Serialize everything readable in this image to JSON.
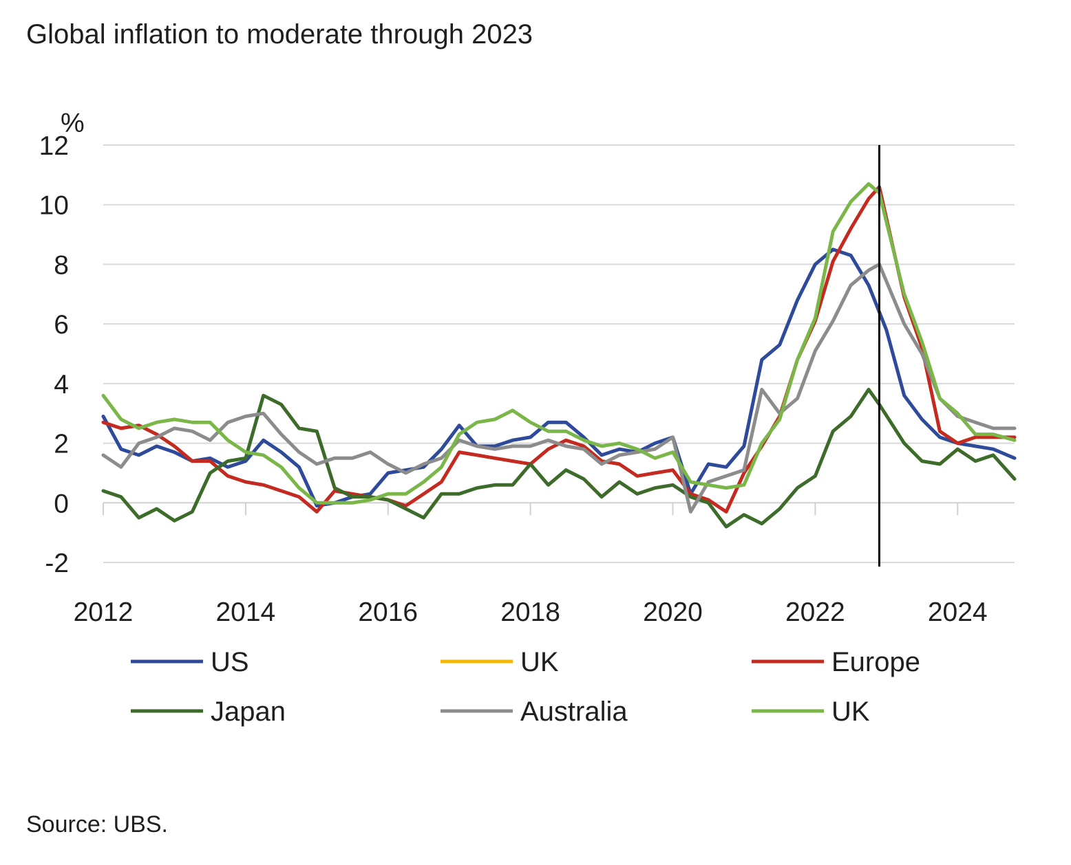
{
  "chart_data": {
    "type": "line",
    "title": "Global inflation to moderate through 2023",
    "source": "Source: UBS.",
    "ylabel": "%",
    "xlabel": "",
    "ylim": [
      -2,
      12
    ],
    "xlim": [
      2012,
      2024.8
    ],
    "yticks": [
      -2,
      0,
      2,
      4,
      6,
      8,
      10,
      12
    ],
    "xticks": [
      2012,
      2014,
      2016,
      2018,
      2020,
      2022,
      2024
    ],
    "grid": true,
    "vline_x": 2022.9,
    "legend": [
      {
        "name": "US",
        "color": "#2e4a9a"
      },
      {
        "name": "UK",
        "color": "#f5b800"
      },
      {
        "name": "Europe",
        "color": "#c42a1f"
      },
      {
        "name": "Japan",
        "color": "#3d6b2a"
      },
      {
        "name": "Australia",
        "color": "#8c8c8c"
      },
      {
        "name": "UK",
        "color": "#7ab648"
      }
    ],
    "series": [
      {
        "name": "US",
        "color": "#2e4a9a",
        "x": [
          2012,
          2012.25,
          2012.5,
          2012.75,
          2013,
          2013.25,
          2013.5,
          2013.75,
          2014,
          2014.25,
          2014.5,
          2014.75,
          2015,
          2015.25,
          2015.5,
          2015.75,
          2016,
          2016.25,
          2016.5,
          2016.75,
          2017,
          2017.25,
          2017.5,
          2017.75,
          2018,
          2018.25,
          2018.5,
          2018.75,
          2019,
          2019.25,
          2019.5,
          2019.75,
          2020,
          2020.25,
          2020.5,
          2020.75,
          2021,
          2021.25,
          2021.5,
          2021.75,
          2022,
          2022.25,
          2022.5,
          2022.75,
          2023,
          2023.25,
          2023.5,
          2023.75,
          2024,
          2024.25,
          2024.5,
          2024.8
        ],
        "values": [
          2.9,
          1.8,
          1.6,
          1.9,
          1.7,
          1.4,
          1.5,
          1.2,
          1.4,
          2.1,
          1.7,
          1.2,
          -0.1,
          0,
          0.2,
          0.3,
          1,
          1.1,
          1.2,
          1.8,
          2.6,
          1.9,
          1.9,
          2.1,
          2.2,
          2.7,
          2.7,
          2.2,
          1.6,
          1.8,
          1.7,
          2,
          2.2,
          0.3,
          1.3,
          1.2,
          1.9,
          4.8,
          5.3,
          6.8,
          8,
          8.5,
          8.3,
          7.3,
          5.8,
          3.6,
          2.8,
          2.2,
          2,
          1.9,
          1.8,
          1.5
        ]
      },
      {
        "name": "Europe",
        "color": "#c42a1f",
        "x": [
          2012,
          2012.25,
          2012.5,
          2012.75,
          2013,
          2013.25,
          2013.5,
          2013.75,
          2014,
          2014.25,
          2014.5,
          2014.75,
          2015,
          2015.25,
          2015.5,
          2015.75,
          2016,
          2016.25,
          2016.5,
          2016.75,
          2017,
          2017.25,
          2017.5,
          2017.75,
          2018,
          2018.25,
          2018.5,
          2018.75,
          2019,
          2019.25,
          2019.5,
          2019.75,
          2020,
          2020.25,
          2020.5,
          2020.75,
          2021,
          2021.25,
          2021.5,
          2021.75,
          2022,
          2022.25,
          2022.5,
          2022.75,
          2022.9,
          2023.25,
          2023.5,
          2023.75,
          2024,
          2024.25,
          2024.5,
          2024.8
        ],
        "values": [
          2.7,
          2.5,
          2.6,
          2.3,
          1.9,
          1.4,
          1.4,
          0.9,
          0.7,
          0.6,
          0.4,
          0.2,
          -0.3,
          0.4,
          0.3,
          0.2,
          0.1,
          -0.1,
          0.3,
          0.7,
          1.7,
          1.6,
          1.5,
          1.4,
          1.3,
          1.8,
          2.1,
          1.9,
          1.4,
          1.3,
          0.9,
          1,
          1.1,
          0.3,
          0.1,
          -0.3,
          1,
          1.9,
          2.9,
          4.8,
          6.1,
          8.1,
          9.2,
          10.2,
          10.6,
          6.9,
          5.2,
          2.4,
          2,
          2.2,
          2.2,
          2.2
        ]
      },
      {
        "name": "Japan",
        "color": "#3d6b2a",
        "x": [
          2012,
          2012.25,
          2012.5,
          2012.75,
          2013,
          2013.25,
          2013.5,
          2013.75,
          2014,
          2014.25,
          2014.5,
          2014.75,
          2015,
          2015.25,
          2015.5,
          2015.75,
          2016,
          2016.25,
          2016.5,
          2016.75,
          2017,
          2017.25,
          2017.5,
          2017.75,
          2018,
          2018.25,
          2018.5,
          2018.75,
          2019,
          2019.25,
          2019.5,
          2019.75,
          2020,
          2020.25,
          2020.5,
          2020.75,
          2021,
          2021.25,
          2021.5,
          2021.75,
          2022,
          2022.25,
          2022.5,
          2022.75,
          2022.9,
          2023.25,
          2023.5,
          2023.75,
          2024,
          2024.25,
          2024.5,
          2024.8
        ],
        "values": [
          0.4,
          0.2,
          -0.5,
          -0.2,
          -0.6,
          -0.3,
          1,
          1.4,
          1.5,
          3.6,
          3.3,
          2.5,
          2.4,
          0.5,
          0.2,
          0.2,
          0.1,
          -0.2,
          -0.5,
          0.3,
          0.3,
          0.5,
          0.6,
          0.6,
          1.3,
          0.6,
          1.1,
          0.8,
          0.2,
          0.7,
          0.3,
          0.5,
          0.6,
          0.2,
          0,
          -0.8,
          -0.4,
          -0.7,
          -0.2,
          0.5,
          0.9,
          2.4,
          2.9,
          3.8,
          3.3,
          2,
          1.4,
          1.3,
          1.8,
          1.4,
          1.6,
          0.8
        ]
      },
      {
        "name": "Australia",
        "color": "#8c8c8c",
        "x": [
          2012,
          2012.25,
          2012.5,
          2012.75,
          2013,
          2013.25,
          2013.5,
          2013.75,
          2014,
          2014.25,
          2014.5,
          2014.75,
          2015,
          2015.25,
          2015.5,
          2015.75,
          2016,
          2016.25,
          2016.5,
          2016.75,
          2017,
          2017.25,
          2017.5,
          2017.75,
          2018,
          2018.25,
          2018.5,
          2018.75,
          2019,
          2019.25,
          2019.5,
          2019.75,
          2020,
          2020.25,
          2020.5,
          2020.75,
          2021,
          2021.25,
          2021.5,
          2021.75,
          2022,
          2022.25,
          2022.5,
          2022.75,
          2022.9,
          2023.25,
          2023.5,
          2023.75,
          2024,
          2024.25,
          2024.5,
          2024.8
        ],
        "values": [
          1.6,
          1.2,
          2,
          2.2,
          2.5,
          2.4,
          2.1,
          2.7,
          2.9,
          3,
          2.3,
          1.7,
          1.3,
          1.5,
          1.5,
          1.7,
          1.3,
          1,
          1.3,
          1.5,
          2.1,
          1.9,
          1.8,
          1.9,
          1.9,
          2.1,
          1.9,
          1.8,
          1.3,
          1.6,
          1.7,
          1.8,
          2.2,
          -0.3,
          0.7,
          0.9,
          1.1,
          3.8,
          3,
          3.5,
          5.1,
          6.1,
          7.3,
          7.8,
          8,
          6,
          5,
          3.5,
          2.9,
          2.7,
          2.5,
          2.5
        ]
      },
      {
        "name": "UK",
        "color": "#7ab648",
        "x": [
          2012,
          2012.25,
          2012.5,
          2012.75,
          2013,
          2013.25,
          2013.5,
          2013.75,
          2014,
          2014.25,
          2014.5,
          2014.75,
          2015,
          2015.25,
          2015.5,
          2015.75,
          2016,
          2016.25,
          2016.5,
          2016.75,
          2017,
          2017.25,
          2017.5,
          2017.75,
          2018,
          2018.25,
          2018.5,
          2018.75,
          2019,
          2019.25,
          2019.5,
          2019.75,
          2020,
          2020.25,
          2020.5,
          2020.75,
          2021,
          2021.25,
          2021.5,
          2021.75,
          2022,
          2022.25,
          2022.5,
          2022.75,
          2022.9,
          2023.25,
          2023.5,
          2023.75,
          2024,
          2024.25,
          2024.5,
          2024.8
        ],
        "values": [
          3.6,
          2.8,
          2.5,
          2.7,
          2.8,
          2.7,
          2.7,
          2.1,
          1.7,
          1.6,
          1.2,
          0.5,
          0,
          0,
          0,
          0.1,
          0.3,
          0.3,
          0.7,
          1.2,
          2.3,
          2.7,
          2.8,
          3.1,
          2.7,
          2.4,
          2.4,
          2.1,
          1.9,
          2,
          1.8,
          1.5,
          1.7,
          0.7,
          0.6,
          0.5,
          0.6,
          2,
          2.8,
          4.8,
          6.2,
          9.1,
          10.1,
          10.7,
          10.4,
          7,
          5.4,
          3.5,
          3,
          2.3,
          2.3,
          2.1
        ]
      }
    ]
  }
}
